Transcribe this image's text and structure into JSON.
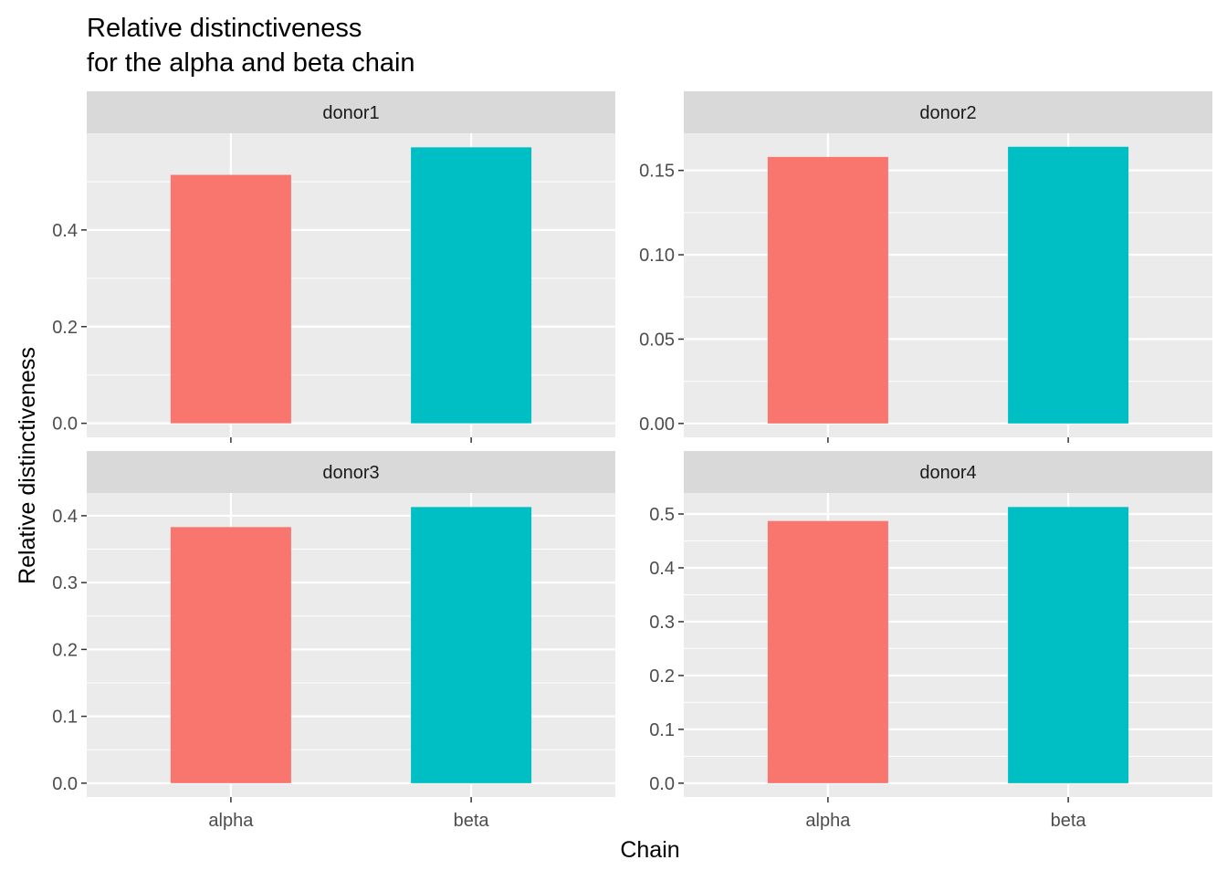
{
  "chart_data": {
    "type": "bar",
    "title": "Relative distinctiveness\nfor the alpha and beta chain",
    "title_lines": [
      "Relative distinctiveness",
      "for the alpha and beta chain"
    ],
    "xlabel": "Chain",
    "ylabel": "Relative distinctiveness",
    "categories": [
      "alpha",
      "beta"
    ],
    "bar_colors": [
      "#F8766D",
      "#00BFC4"
    ],
    "panel_background": "#EBEBEB",
    "strip_background": "#D9D9D9",
    "grid": true,
    "legend": "none",
    "facets": [
      {
        "name": "donor1",
        "values": [
          0.514,
          0.571
        ],
        "ylim": [
          -0.029,
          0.6
        ],
        "ticks": [
          0.0,
          0.2,
          0.4
        ],
        "tick_labels": [
          "0.0",
          "0.2",
          "0.4"
        ]
      },
      {
        "name": "donor2",
        "values": [
          0.158,
          0.164
        ],
        "ylim": [
          -0.0082,
          0.172
        ],
        "ticks": [
          0.0,
          0.05,
          0.1,
          0.15
        ],
        "tick_labels": [
          "0.00",
          "0.05",
          "0.10",
          "0.15"
        ]
      },
      {
        "name": "donor3",
        "values": [
          0.383,
          0.413
        ],
        "ylim": [
          -0.0207,
          0.434
        ],
        "ticks": [
          0.0,
          0.1,
          0.2,
          0.3,
          0.4
        ],
        "tick_labels": [
          "0.0",
          "0.1",
          "0.2",
          "0.3",
          "0.4"
        ]
      },
      {
        "name": "donor4",
        "values": [
          0.487,
          0.513
        ],
        "ylim": [
          -0.0257,
          0.539
        ],
        "ticks": [
          0.0,
          0.1,
          0.2,
          0.3,
          0.4,
          0.5
        ],
        "tick_labels": [
          "0.0",
          "0.1",
          "0.2",
          "0.3",
          "0.4",
          "0.5"
        ]
      }
    ]
  }
}
